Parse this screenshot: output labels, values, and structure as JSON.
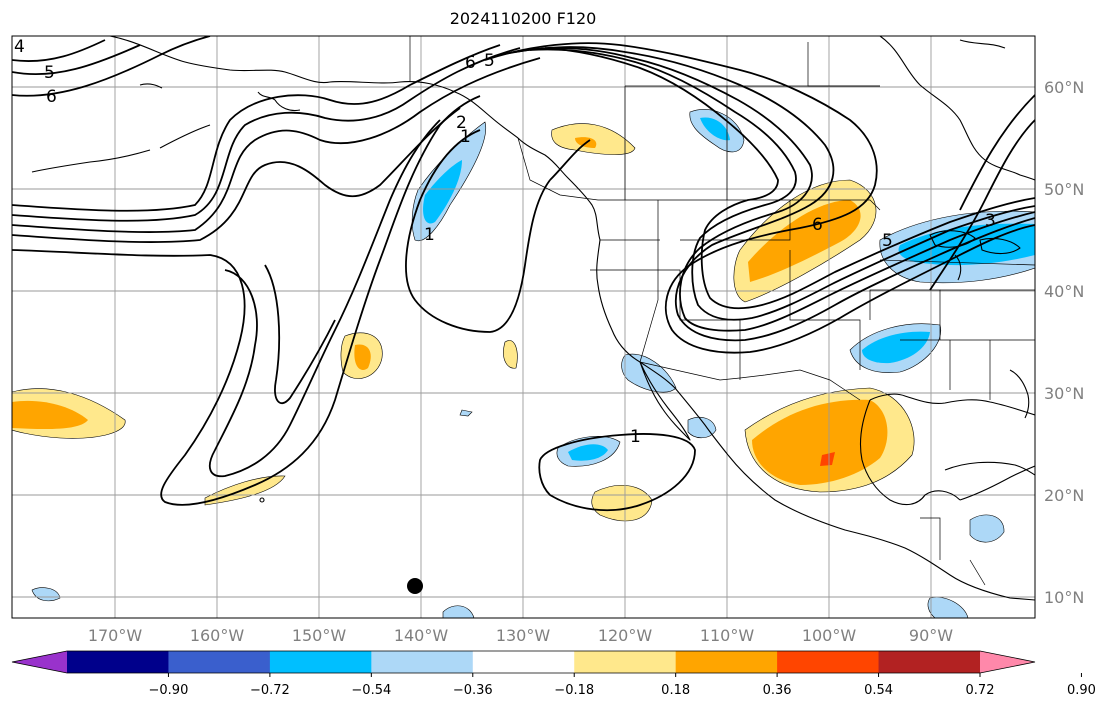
{
  "title": "2024110200 F120",
  "map_axes": {
    "longitude_labels": [
      "170°W",
      "160°W",
      "150°W",
      "140°W",
      "130°W",
      "120°W",
      "110°W",
      "100°W",
      "90°W"
    ],
    "latitude_labels": [
      "60°N",
      "50°N",
      "40°N",
      "30°N",
      "20°N",
      "10°N"
    ],
    "lon_range_deg": [
      -180,
      -80
    ],
    "lat_range_deg": [
      8,
      65
    ],
    "gridlines": true
  },
  "contour_labels": [
    "4",
    "5",
    "6",
    "6",
    "5",
    "2",
    "1",
    "1",
    "1",
    "6",
    "5",
    "3",
    "1"
  ],
  "colorbar": {
    "tick_labels": [
      "−0.90",
      "−0.72",
      "−0.54",
      "−0.36",
      "−0.18",
      "0.18",
      "0.36",
      "0.54",
      "0.72",
      "0.90"
    ],
    "colors": [
      "#9932cc",
      "#00008b",
      "#3a5fcd",
      "#00bfff",
      "#add8f7",
      "#ffffff",
      "#ffe88c",
      "#ffa500",
      "#ff4500",
      "#b22222",
      "#ff88aa"
    ],
    "extend": "both"
  },
  "marker": {
    "label": "black dot",
    "lon": -140,
    "lat": 11
  }
}
